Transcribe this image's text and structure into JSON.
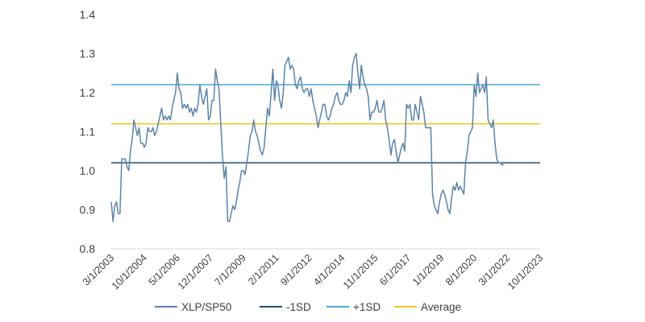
{
  "chart_data": {
    "type": "line",
    "title": "",
    "xlabel": "",
    "ylabel": "",
    "ylim": [
      0.8,
      1.4
    ],
    "y_ticks": [
      "0.8",
      "0.9",
      "1.0",
      "1.1",
      "1.2",
      "1.3",
      "1.4"
    ],
    "grid": false,
    "legend_position": "bottom",
    "x_range": [
      "2003-03-01",
      "2023-10-01"
    ],
    "x_tick_labels": [
      "3/1/2003",
      "10/1/2004",
      "5/1/2006",
      "12/1/2007",
      "7/1/2009",
      "2/1/2011",
      "9/1/2012",
      "4/1/2014",
      "11/1/2015",
      "6/1/2017",
      "1/1/2019",
      "8/1/2020",
      "3/1/2022",
      "10/1/2023"
    ],
    "series": [
      {
        "name": "XLP/SP50",
        "color": "#5b84a8",
        "points": [
          [
            "2003-03-01",
            0.92
          ],
          [
            "2003-04-01",
            0.87
          ],
          [
            "2003-05-01",
            0.91
          ],
          [
            "2003-06-01",
            0.92
          ],
          [
            "2003-07-01",
            0.89
          ],
          [
            "2003-08-01",
            0.89
          ],
          [
            "2003-09-01",
            1.03
          ],
          [
            "2003-10-01",
            1.03
          ],
          [
            "2003-11-01",
            1.03
          ],
          [
            "2003-12-01",
            1.01
          ],
          [
            "2004-01-01",
            1.0
          ],
          [
            "2004-02-01",
            1.05
          ],
          [
            "2004-03-01",
            1.08
          ],
          [
            "2004-04-01",
            1.13
          ],
          [
            "2004-05-01",
            1.11
          ],
          [
            "2004-06-01",
            1.09
          ],
          [
            "2004-07-01",
            1.11
          ],
          [
            "2004-08-01",
            1.07
          ],
          [
            "2004-09-01",
            1.07
          ],
          [
            "2004-10-01",
            1.06
          ],
          [
            "2004-11-01",
            1.07
          ],
          [
            "2004-12-01",
            1.11
          ],
          [
            "2005-01-01",
            1.1
          ],
          [
            "2005-02-01",
            1.1
          ],
          [
            "2005-03-01",
            1.11
          ],
          [
            "2005-04-01",
            1.09
          ],
          [
            "2005-05-01",
            1.1
          ],
          [
            "2005-06-01",
            1.12
          ],
          [
            "2005-07-01",
            1.14
          ],
          [
            "2005-08-01",
            1.16
          ],
          [
            "2005-09-01",
            1.13
          ],
          [
            "2005-10-01",
            1.14
          ],
          [
            "2005-11-01",
            1.13
          ],
          [
            "2005-12-01",
            1.14
          ],
          [
            "2006-01-01",
            1.13
          ],
          [
            "2006-02-01",
            1.16
          ],
          [
            "2006-03-01",
            1.18
          ],
          [
            "2006-04-01",
            1.2
          ],
          [
            "2006-05-01",
            1.25
          ],
          [
            "2006-06-01",
            1.21
          ],
          [
            "2006-07-01",
            1.2
          ],
          [
            "2006-08-01",
            1.16
          ],
          [
            "2006-09-01",
            1.17
          ],
          [
            "2006-10-01",
            1.16
          ],
          [
            "2006-11-01",
            1.17
          ],
          [
            "2006-12-01",
            1.15
          ],
          [
            "2007-01-01",
            1.16
          ],
          [
            "2007-02-01",
            1.14
          ],
          [
            "2007-03-01",
            1.16
          ],
          [
            "2007-04-01",
            1.15
          ],
          [
            "2007-05-01",
            1.17
          ],
          [
            "2007-06-01",
            1.22
          ],
          [
            "2007-07-01",
            1.19
          ],
          [
            "2007-08-01",
            1.17
          ],
          [
            "2007-09-01",
            1.19
          ],
          [
            "2007-10-01",
            1.21
          ],
          [
            "2007-11-01",
            1.13
          ],
          [
            "2007-12-01",
            1.14
          ],
          [
            "2008-01-01",
            1.18
          ],
          [
            "2008-02-01",
            1.18
          ],
          [
            "2008-03-01",
            1.26
          ],
          [
            "2008-04-01",
            1.23
          ],
          [
            "2008-05-01",
            1.21
          ],
          [
            "2008-06-01",
            1.12
          ],
          [
            "2008-07-01",
            1.04
          ],
          [
            "2008-08-01",
            0.98
          ],
          [
            "2008-09-01",
            1.01
          ],
          [
            "2008-10-01",
            0.87
          ],
          [
            "2008-11-01",
            0.87
          ],
          [
            "2008-12-01",
            0.89
          ],
          [
            "2009-01-01",
            0.91
          ],
          [
            "2009-02-01",
            0.9
          ],
          [
            "2009-03-01",
            0.92
          ],
          [
            "2009-04-01",
            0.95
          ],
          [
            "2009-05-01",
            0.97
          ],
          [
            "2009-06-01",
            1.0
          ],
          [
            "2009-07-01",
            1.0
          ],
          [
            "2009-08-01",
            0.99
          ],
          [
            "2009-09-01",
            1.02
          ],
          [
            "2009-10-01",
            1.05
          ],
          [
            "2009-11-01",
            1.09
          ],
          [
            "2009-12-01",
            1.1
          ],
          [
            "2010-01-01",
            1.13
          ],
          [
            "2010-02-01",
            1.1
          ],
          [
            "2010-03-01",
            1.09
          ],
          [
            "2010-04-01",
            1.07
          ],
          [
            "2010-05-01",
            1.05
          ],
          [
            "2010-06-01",
            1.04
          ],
          [
            "2010-07-01",
            1.06
          ],
          [
            "2010-08-01",
            1.11
          ],
          [
            "2010-09-01",
            1.16
          ],
          [
            "2010-10-01",
            1.14
          ],
          [
            "2010-11-01",
            1.2
          ],
          [
            "2010-12-01",
            1.26
          ],
          [
            "2011-01-01",
            1.18
          ],
          [
            "2011-02-01",
            1.23
          ],
          [
            "2011-03-01",
            1.22
          ],
          [
            "2011-04-01",
            1.18
          ],
          [
            "2011-05-01",
            1.16
          ],
          [
            "2011-06-01",
            1.2
          ],
          [
            "2011-07-01",
            1.27
          ],
          [
            "2011-08-01",
            1.28
          ],
          [
            "2011-09-01",
            1.29
          ],
          [
            "2011-10-01",
            1.26
          ],
          [
            "2011-11-01",
            1.27
          ],
          [
            "2011-12-01",
            1.26
          ],
          [
            "2012-01-01",
            1.22
          ],
          [
            "2012-02-01",
            1.21
          ],
          [
            "2012-03-01",
            1.23
          ],
          [
            "2012-04-01",
            1.24
          ],
          [
            "2012-05-01",
            1.21
          ],
          [
            "2012-06-01",
            1.2
          ],
          [
            "2012-07-01",
            1.21
          ],
          [
            "2012-08-01",
            1.21
          ],
          [
            "2012-09-01",
            1.19
          ],
          [
            "2012-10-01",
            1.21
          ],
          [
            "2012-11-01",
            1.18
          ],
          [
            "2012-12-01",
            1.16
          ],
          [
            "2013-01-01",
            1.14
          ],
          [
            "2013-02-01",
            1.11
          ],
          [
            "2013-03-01",
            1.13
          ],
          [
            "2013-04-01",
            1.15
          ],
          [
            "2013-05-01",
            1.17
          ],
          [
            "2013-06-01",
            1.17
          ],
          [
            "2013-07-01",
            1.14
          ],
          [
            "2013-08-01",
            1.13
          ],
          [
            "2013-09-01",
            1.14
          ],
          [
            "2013-10-01",
            1.16
          ],
          [
            "2013-11-01",
            1.17
          ],
          [
            "2013-12-01",
            1.19
          ],
          [
            "2014-01-01",
            1.2
          ],
          [
            "2014-02-01",
            1.18
          ],
          [
            "2014-03-01",
            1.17
          ],
          [
            "2014-04-01",
            1.17
          ],
          [
            "2014-05-01",
            1.18
          ],
          [
            "2014-06-01",
            1.2
          ],
          [
            "2014-07-01",
            1.19
          ],
          [
            "2014-08-01",
            1.23
          ],
          [
            "2014-09-01",
            1.2
          ],
          [
            "2014-10-01",
            1.27
          ],
          [
            "2014-11-01",
            1.29
          ],
          [
            "2014-12-01",
            1.3
          ],
          [
            "2015-01-01",
            1.25
          ],
          [
            "2015-02-01",
            1.21
          ],
          [
            "2015-03-01",
            1.27
          ],
          [
            "2015-04-01",
            1.24
          ],
          [
            "2015-05-01",
            1.22
          ],
          [
            "2015-06-01",
            1.21
          ],
          [
            "2015-07-01",
            1.19
          ],
          [
            "2015-08-01",
            1.13
          ],
          [
            "2015-09-01",
            1.15
          ],
          [
            "2015-10-01",
            1.15
          ],
          [
            "2015-11-01",
            1.16
          ],
          [
            "2015-12-01",
            1.18
          ],
          [
            "2016-01-01",
            1.15
          ],
          [
            "2016-02-01",
            1.15
          ],
          [
            "2016-03-01",
            1.16
          ],
          [
            "2016-04-01",
            1.18
          ],
          [
            "2016-05-01",
            1.13
          ],
          [
            "2016-06-01",
            1.11
          ],
          [
            "2016-07-01",
            1.08
          ],
          [
            "2016-08-01",
            1.04
          ],
          [
            "2016-09-01",
            1.07
          ],
          [
            "2016-10-01",
            1.08
          ],
          [
            "2016-11-01",
            1.05
          ],
          [
            "2016-12-01",
            1.02
          ],
          [
            "2017-01-01",
            1.04
          ],
          [
            "2017-02-01",
            1.06
          ],
          [
            "2017-03-01",
            1.07
          ],
          [
            "2017-04-01",
            1.05
          ],
          [
            "2017-05-01",
            1.17
          ],
          [
            "2017-06-01",
            1.16
          ],
          [
            "2017-07-01",
            1.17
          ],
          [
            "2017-08-01",
            1.13
          ],
          [
            "2017-09-01",
            1.13
          ],
          [
            "2017-10-01",
            1.17
          ],
          [
            "2017-11-01",
            1.15
          ],
          [
            "2017-12-01",
            1.13
          ],
          [
            "2018-01-01",
            1.19
          ],
          [
            "2018-02-01",
            1.17
          ],
          [
            "2018-03-01",
            1.15
          ],
          [
            "2018-04-01",
            1.11
          ],
          [
            "2018-05-01",
            1.11
          ],
          [
            "2018-06-01",
            1.11
          ],
          [
            "2018-07-01",
            1.11
          ],
          [
            "2018-08-01",
            0.94
          ],
          [
            "2018-09-01",
            0.91
          ],
          [
            "2018-10-01",
            0.9
          ],
          [
            "2018-11-01",
            0.89
          ],
          [
            "2018-12-01",
            0.92
          ],
          [
            "2019-01-01",
            0.94
          ],
          [
            "2019-02-01",
            0.95
          ],
          [
            "2019-03-01",
            0.94
          ],
          [
            "2019-04-01",
            0.92
          ],
          [
            "2019-05-01",
            0.9
          ],
          [
            "2019-06-01",
            0.89
          ],
          [
            "2019-07-01",
            0.93
          ],
          [
            "2019-08-01",
            0.96
          ],
          [
            "2019-09-01",
            0.95
          ],
          [
            "2019-10-01",
            0.97
          ],
          [
            "2019-11-01",
            0.95
          ],
          [
            "2019-12-01",
            0.96
          ],
          [
            "2020-01-01",
            0.95
          ],
          [
            "2020-02-01",
            0.94
          ],
          [
            "2020-03-01",
            1.02
          ],
          [
            "2020-04-01",
            1.05
          ],
          [
            "2020-05-01",
            1.09
          ],
          [
            "2020-06-01",
            1.1
          ],
          [
            "2020-07-01",
            1.11
          ],
          [
            "2020-08-01",
            1.22
          ],
          [
            "2020-09-01",
            1.19
          ],
          [
            "2020-10-01",
            1.25
          ],
          [
            "2020-11-01",
            1.2
          ],
          [
            "2020-12-01",
            1.21
          ],
          [
            "2021-01-01",
            1.22
          ],
          [
            "2021-02-01",
            1.2
          ],
          [
            "2021-03-01",
            1.24
          ],
          [
            "2021-04-01",
            1.13
          ],
          [
            "2021-05-01",
            1.12
          ],
          [
            "2021-06-01",
            1.11
          ],
          [
            "2021-07-01",
            1.13
          ],
          [
            "2021-08-01",
            1.07
          ],
          [
            "2021-09-01",
            1.03
          ],
          [
            "2021-10-01",
            1.02
          ],
          [
            "2021-11-01",
            1.02
          ],
          [
            "2021-12-01",
            1.015
          ],
          [
            "2022-01-01",
            1.015
          ]
        ]
      },
      {
        "name": "-1SD",
        "color": "#1f4e79",
        "constant": 1.02
      },
      {
        "name": "+1SD",
        "color": "#4aa8d8",
        "constant": 1.22
      },
      {
        "name": "Average",
        "color": "#f5c518",
        "constant": 1.12
      }
    ]
  }
}
